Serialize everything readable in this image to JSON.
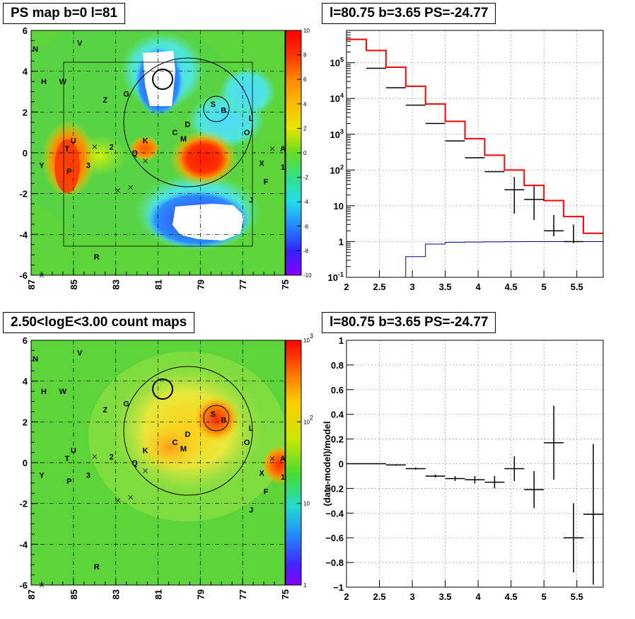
{
  "panels": {
    "tl_title": "PS map b=0 l=81",
    "tr_title": "l=80.75 b=3.65 PS=-24.77",
    "bl_title": "2.50<logE<3.00 count maps",
    "br_title": "l=80.75 b=3.65 PS=-24.77"
  },
  "chart_data": [
    {
      "type": "heatmap",
      "id": "ps-map",
      "title": "PS map b=0 l=81",
      "x_ticks": [
        "87",
        "85",
        "83",
        "81",
        "79",
        "77",
        "75"
      ],
      "y_ticks": [
        "6",
        "4",
        "2",
        "0",
        "-2",
        "-4",
        "-6"
      ],
      "xlim": [
        87,
        75
      ],
      "ylim": [
        -6,
        6
      ],
      "colorbar": {
        "min": -10,
        "max": 10,
        "ticks": [
          "10",
          "8",
          "6",
          "4",
          "2",
          "0",
          "-2",
          "-4",
          "-6",
          "-8",
          "-10"
        ]
      },
      "source_labels": [
        {
          "t": "N",
          "l": 86.8,
          "b": 5.1
        },
        {
          "t": "V",
          "l": 84.7,
          "b": 5.4
        },
        {
          "t": "H",
          "l": 86.4,
          "b": 3.5
        },
        {
          "t": "W",
          "l": 85.5,
          "b": 3.5
        },
        {
          "t": "Z",
          "l": 83.5,
          "b": 2.6
        },
        {
          "t": "G",
          "l": 82.5,
          "b": 2.9
        },
        {
          "t": "S",
          "l": 78.4,
          "b": 2.4
        },
        {
          "t": "B",
          "l": 77.9,
          "b": 2.1
        },
        {
          "t": "D",
          "l": 79.6,
          "b": 1.4
        },
        {
          "t": "L",
          "l": 76.6,
          "b": 1.7
        },
        {
          "t": "C",
          "l": 80.2,
          "b": 1.0
        },
        {
          "t": "M",
          "l": 79.8,
          "b": 0.7
        },
        {
          "t": "O",
          "l": 76.8,
          "b": 1.0
        },
        {
          "t": "U",
          "l": 85.0,
          "b": 0.6
        },
        {
          "t": "K",
          "l": 81.6,
          "b": 0.6
        },
        {
          "t": "2",
          "l": 83.2,
          "b": 0.3
        },
        {
          "t": "T",
          "l": 85.3,
          "b": 0.2
        },
        {
          "t": "Q",
          "l": 82.1,
          "b": 0.0
        },
        {
          "t": "A",
          "l": 75.1,
          "b": 0.2
        },
        {
          "t": "X",
          "l": 76.1,
          "b": -0.5
        },
        {
          "t": "Y",
          "l": 86.5,
          "b": -0.6
        },
        {
          "t": "3",
          "l": 84.3,
          "b": -0.6
        },
        {
          "t": "1",
          "l": 75.1,
          "b": -0.7
        },
        {
          "t": "P",
          "l": 85.2,
          "b": -0.9
        },
        {
          "t": "F",
          "l": 75.9,
          "b": -1.4
        },
        {
          "t": "J",
          "l": 76.6,
          "b": -2.3
        },
        {
          "t": "R",
          "l": 83.9,
          "b": -5.1
        }
      ]
    },
    {
      "type": "line",
      "id": "spectrum",
      "title": "l=80.75 b=3.65 PS=-24.77",
      "x_ticks": [
        "2",
        "2.5",
        "3",
        "3.5",
        "4",
        "4.5",
        "5",
        "5.5"
      ],
      "y_ticks": [
        "10^5",
        "10^4",
        "10^3",
        "10^2",
        "10",
        "1",
        "10^-1"
      ],
      "xlim": [
        2.0,
        5.9
      ],
      "ylim": [
        0.1,
        800000
      ],
      "log_y": true,
      "series": [
        {
          "color": "#ff0000",
          "bins": [
            2.0,
            2.3,
            2.6,
            2.9,
            3.2,
            3.5,
            3.8,
            4.1,
            4.4,
            4.7,
            5.0,
            5.3,
            5.6,
            5.9
          ],
          "values": [
            450000,
            220000,
            75000,
            22000,
            7000,
            2300,
            750,
            260,
            100,
            37,
            14,
            5,
            1.7
          ]
        },
        {
          "color": "#000080",
          "bins": [
            2.0,
            2.3,
            2.6,
            2.9,
            3.2,
            3.5,
            3.8,
            4.1,
            4.4,
            4.7,
            5.0,
            5.3,
            5.6,
            5.9
          ],
          "values": [
            0.001,
            0.001,
            0.001,
            0.38,
            0.85,
            0.95,
            0.97,
            0.98,
            0.99,
            1.0,
            1.0,
            1.0,
            1.0
          ]
        },
        {
          "color": "#000000",
          "points": [
            {
              "x": 2.45,
              "y": 70000,
              "xerr": 0.15
            },
            {
              "x": 2.75,
              "y": 20000,
              "xerr": 0.15
            },
            {
              "x": 3.05,
              "y": 6500,
              "xerr": 0.15
            },
            {
              "x": 3.35,
              "y": 2000,
              "xerr": 0.15
            },
            {
              "x": 3.65,
              "y": 650,
              "xerr": 0.15
            },
            {
              "x": 3.95,
              "y": 220,
              "xerr": 0.15
            },
            {
              "x": 4.25,
              "y": 90,
              "xerr": 0.15
            },
            {
              "x": 4.55,
              "y": 28,
              "xerr": 0.15,
              "yerr": [
                22,
                36
              ]
            },
            {
              "x": 4.85,
              "y": 15,
              "xerr": 0.15,
              "yerr": [
                11,
                20
              ]
            },
            {
              "x": 5.15,
              "y": 2.0,
              "xerr": 0.15,
              "yerr": [
                0.6,
                3.5
              ]
            },
            {
              "x": 5.45,
              "y": 1.0,
              "xerr": 0.15,
              "yerr": [
                0.1,
                2.0
              ]
            }
          ]
        }
      ]
    },
    {
      "type": "heatmap",
      "id": "count-map",
      "title": "2.50<logE<3.00 count maps",
      "x_ticks": [
        "87",
        "85",
        "83",
        "81",
        "79",
        "77",
        "75"
      ],
      "y_ticks": [
        "6",
        "4",
        "2",
        "0",
        "-2",
        "-4",
        "-6"
      ],
      "xlim": [
        87,
        75
      ],
      "ylim": [
        -6,
        6
      ],
      "colorbar": {
        "min": 1,
        "max": 1000,
        "log": true,
        "ticks": [
          "10^3",
          "10^2",
          "10",
          "1"
        ]
      }
    },
    {
      "type": "scatter",
      "id": "residuals",
      "title": "l=80.75 b=3.65 PS=-24.77",
      "ylabel": "(data-model)/model",
      "x_ticks": [
        "2",
        "2.5",
        "3",
        "3.5",
        "4",
        "4.5",
        "5",
        "5.5"
      ],
      "y_ticks": [
        "1",
        "0.8",
        "0.6",
        "0.4",
        "0.2",
        "0",
        "-0.2",
        "-0.4",
        "-0.6",
        "-0.8",
        "-1"
      ],
      "xlim": [
        2.0,
        5.9
      ],
      "ylim": [
        -1,
        1
      ],
      "points": [
        {
          "x": 2.15,
          "y": 0.0,
          "xerr": 0.15,
          "yerr": 0.005
        },
        {
          "x": 2.45,
          "y": 0.0,
          "xerr": 0.15,
          "yerr": 0.005
        },
        {
          "x": 2.75,
          "y": -0.01,
          "xerr": 0.15,
          "yerr": 0.006
        },
        {
          "x": 3.05,
          "y": -0.04,
          "xerr": 0.15,
          "yerr": 0.008
        },
        {
          "x": 3.35,
          "y": -0.1,
          "xerr": 0.15,
          "yerr": 0.012
        },
        {
          "x": 3.65,
          "y": -0.12,
          "xerr": 0.15,
          "yerr": 0.02
        },
        {
          "x": 3.95,
          "y": -0.13,
          "xerr": 0.15,
          "yerr": 0.03
        },
        {
          "x": 4.25,
          "y": -0.15,
          "xerr": 0.15,
          "yerr": 0.05
        },
        {
          "x": 4.55,
          "y": -0.04,
          "xerr": 0.15,
          "yerr": 0.1
        },
        {
          "x": 4.85,
          "y": -0.21,
          "xerr": 0.15,
          "yerr": 0.15
        },
        {
          "x": 5.15,
          "y": 0.17,
          "xerr": 0.15,
          "yerr": 0.3
        },
        {
          "x": 5.45,
          "y": -0.6,
          "xerr": 0.15,
          "yerr": 0.28
        },
        {
          "x": 5.75,
          "y": -0.41,
          "xerr": 0.15,
          "yerr": 0.57
        }
      ]
    }
  ]
}
